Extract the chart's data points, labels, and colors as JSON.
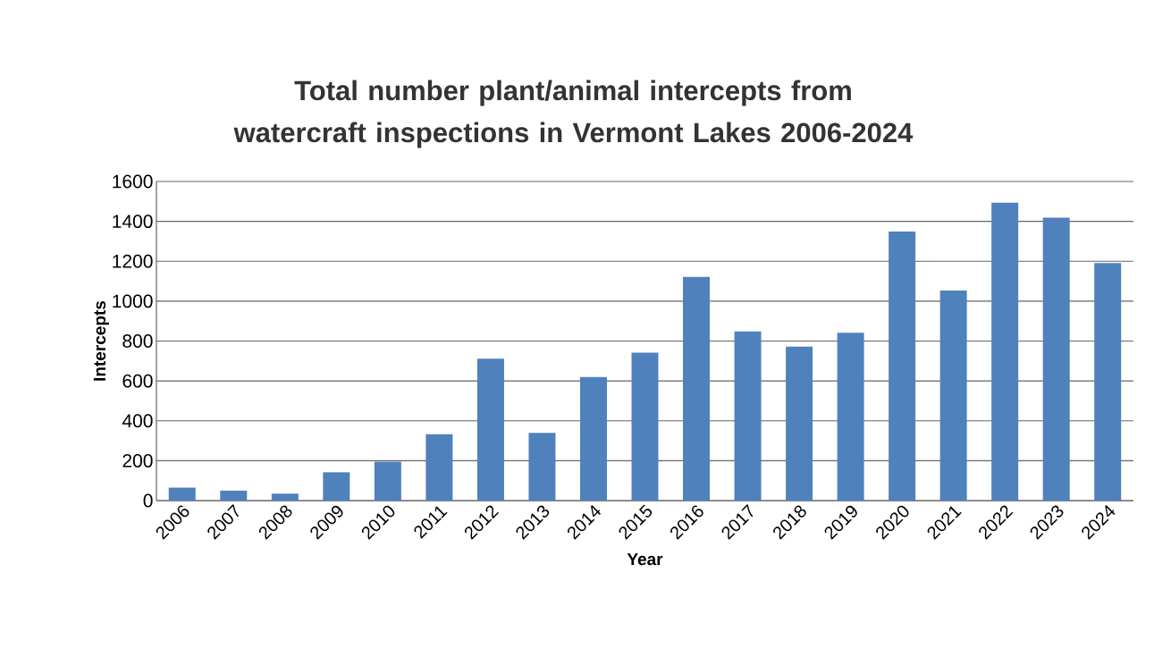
{
  "chart_data": {
    "type": "bar",
    "title": "Total number plant/animal intercepts from watercraft inspections in Vermont Lakes 2006-2024",
    "xlabel": "Year",
    "ylabel": "Intercepts",
    "categories": [
      "2006",
      "2007",
      "2008",
      "2009",
      "2010",
      "2011",
      "2012",
      "2013",
      "2014",
      "2015",
      "2016",
      "2017",
      "2018",
      "2019",
      "2020",
      "2021",
      "2022",
      "2023",
      "2024"
    ],
    "values": [
      65,
      50,
      35,
      142,
      195,
      333,
      712,
      340,
      620,
      742,
      1122,
      848,
      772,
      841,
      1349,
      1053,
      1494,
      1418,
      1191
    ],
    "color": "#4f81bd",
    "ylim": [
      0,
      1600
    ],
    "yticks": [
      0,
      200,
      400,
      600,
      800,
      1000,
      1200,
      1400,
      1600
    ],
    "grid": "y"
  }
}
